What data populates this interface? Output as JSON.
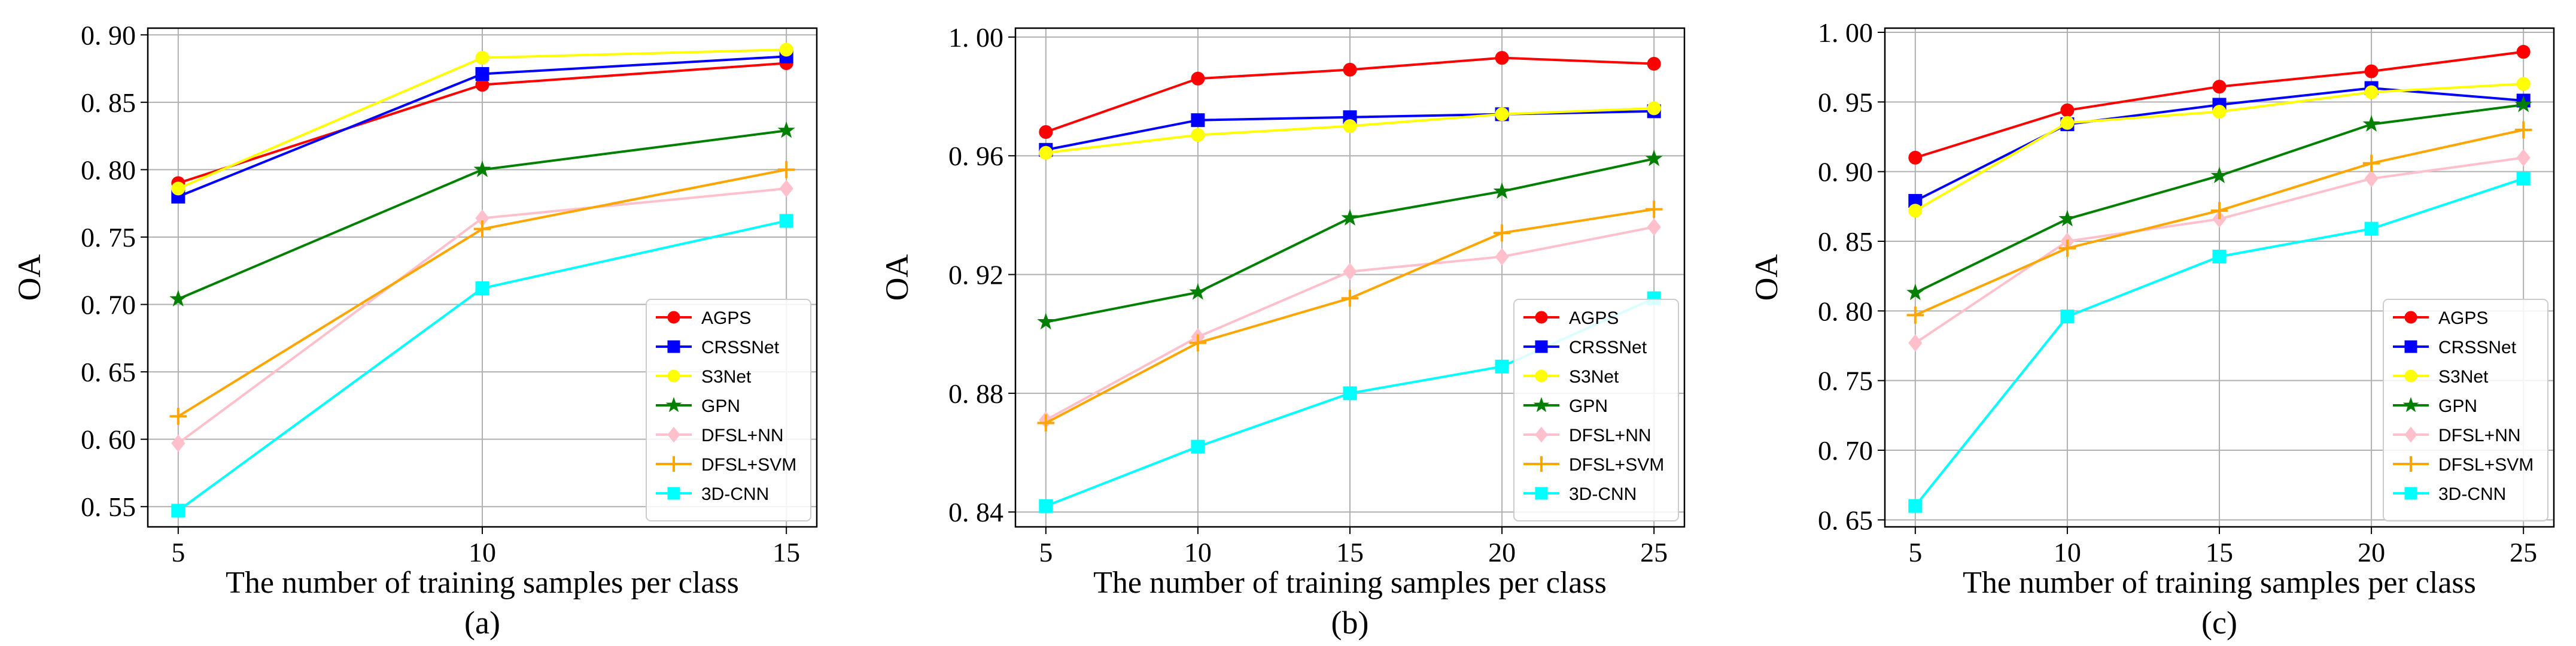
{
  "series_style": {
    "AGPS": {
      "color": "#ff0000",
      "marker": "circle"
    },
    "CRSSNet": {
      "color": "#0000ff",
      "marker": "square"
    },
    "S3Net": {
      "color": "#ffff00",
      "marker": "circle"
    },
    "GPN": {
      "color": "#008000",
      "marker": "star"
    },
    "DFSL+NN": {
      "color": "#ffc0cb",
      "marker": "diamond"
    },
    "DFSL+SVM": {
      "color": "#ffa500",
      "marker": "plus"
    },
    "3D-CNN": {
      "color": "#00ffff",
      "marker": "square"
    }
  },
  "chart_data": [
    {
      "type": "line",
      "caption": "(a)",
      "xlabel": "The number of training samples per class",
      "ylabel": "OA",
      "x": [
        5,
        10,
        15
      ],
      "xticks": [
        "5",
        "10",
        "15"
      ],
      "xlim": [
        4.5,
        15.5
      ],
      "ylim": [
        0.535,
        0.905
      ],
      "yticks": [
        0.55,
        0.6,
        0.65,
        0.7,
        0.75,
        0.8,
        0.85,
        0.9
      ],
      "ytick_labels": [
        "0. 55",
        "0. 60",
        "0. 65",
        "0. 70",
        "0. 75",
        "0. 80",
        "0. 85",
        "0. 90"
      ],
      "grid": true,
      "legend_position": "bottom-right",
      "series": [
        {
          "name": "AGPS",
          "values": [
            0.79,
            0.863,
            0.879
          ]
        },
        {
          "name": "CRSSNet",
          "values": [
            0.78,
            0.871,
            0.884
          ]
        },
        {
          "name": "S3Net",
          "values": [
            0.786,
            0.883,
            0.889
          ]
        },
        {
          "name": "GPN",
          "values": [
            0.704,
            0.8,
            0.829
          ]
        },
        {
          "name": "DFSL+NN",
          "values": [
            0.597,
            0.764,
            0.786
          ]
        },
        {
          "name": "DFSL+SVM",
          "values": [
            0.617,
            0.756,
            0.8
          ]
        },
        {
          "name": "3D-CNN",
          "values": [
            0.547,
            0.712,
            0.762
          ]
        }
      ]
    },
    {
      "type": "line",
      "caption": "(b)",
      "xlabel": "The number of training samples per class",
      "ylabel": "OA",
      "x": [
        5,
        10,
        15,
        20,
        25
      ],
      "xticks": [
        "5",
        "10",
        "15",
        "20",
        "25"
      ],
      "xlim": [
        4.0,
        26.0
      ],
      "ylim": [
        0.835,
        1.003
      ],
      "yticks": [
        0.84,
        0.88,
        0.92,
        0.96,
        1.0
      ],
      "ytick_labels": [
        "0. 84",
        "0. 88",
        "0. 92",
        "0. 96",
        "1. 00"
      ],
      "grid": true,
      "legend_position": "bottom-right",
      "series": [
        {
          "name": "AGPS",
          "values": [
            0.968,
            0.986,
            0.989,
            0.993,
            0.991
          ]
        },
        {
          "name": "CRSSNet",
          "values": [
            0.962,
            0.972,
            0.973,
            0.974,
            0.975
          ]
        },
        {
          "name": "S3Net",
          "values": [
            0.961,
            0.967,
            0.97,
            0.974,
            0.976
          ]
        },
        {
          "name": "GPN",
          "values": [
            0.904,
            0.914,
            0.939,
            0.948,
            0.959
          ]
        },
        {
          "name": "DFSL+NN",
          "values": [
            0.871,
            0.899,
            0.921,
            0.926,
            0.936
          ]
        },
        {
          "name": "DFSL+SVM",
          "values": [
            0.87,
            0.897,
            0.912,
            0.934,
            0.942
          ]
        },
        {
          "name": "3D-CNN",
          "values": [
            0.842,
            0.862,
            0.88,
            0.889,
            0.912
          ]
        }
      ]
    },
    {
      "type": "line",
      "caption": "(c)",
      "xlabel": "The number of training samples per class",
      "ylabel": "OA",
      "x": [
        5,
        10,
        15,
        20,
        25
      ],
      "xticks": [
        "5",
        "10",
        "15",
        "20",
        "25"
      ],
      "xlim": [
        4.0,
        26.0
      ],
      "ylim": [
        0.645,
        1.003
      ],
      "yticks": [
        0.65,
        0.7,
        0.75,
        0.8,
        0.85,
        0.9,
        0.95,
        1.0
      ],
      "ytick_labels": [
        "0. 65",
        "0. 70",
        "0. 75",
        "0. 80",
        "0. 85",
        "0. 90",
        "0. 95",
        "1. 00"
      ],
      "grid": true,
      "legend_position": "bottom-right",
      "series": [
        {
          "name": "AGPS",
          "values": [
            0.91,
            0.944,
            0.961,
            0.972,
            0.986
          ]
        },
        {
          "name": "CRSSNet",
          "values": [
            0.879,
            0.934,
            0.948,
            0.96,
            0.951
          ]
        },
        {
          "name": "S3Net",
          "values": [
            0.872,
            0.935,
            0.943,
            0.957,
            0.963
          ]
        },
        {
          "name": "GPN",
          "values": [
            0.813,
            0.866,
            0.897,
            0.934,
            0.948
          ]
        },
        {
          "name": "DFSL+NN",
          "values": [
            0.777,
            0.85,
            0.866,
            0.895,
            0.91
          ]
        },
        {
          "name": "DFSL+SVM",
          "values": [
            0.797,
            0.845,
            0.872,
            0.906,
            0.93
          ]
        },
        {
          "name": "3D-CNN",
          "values": [
            0.66,
            0.796,
            0.839,
            0.859,
            0.895
          ]
        }
      ]
    }
  ]
}
